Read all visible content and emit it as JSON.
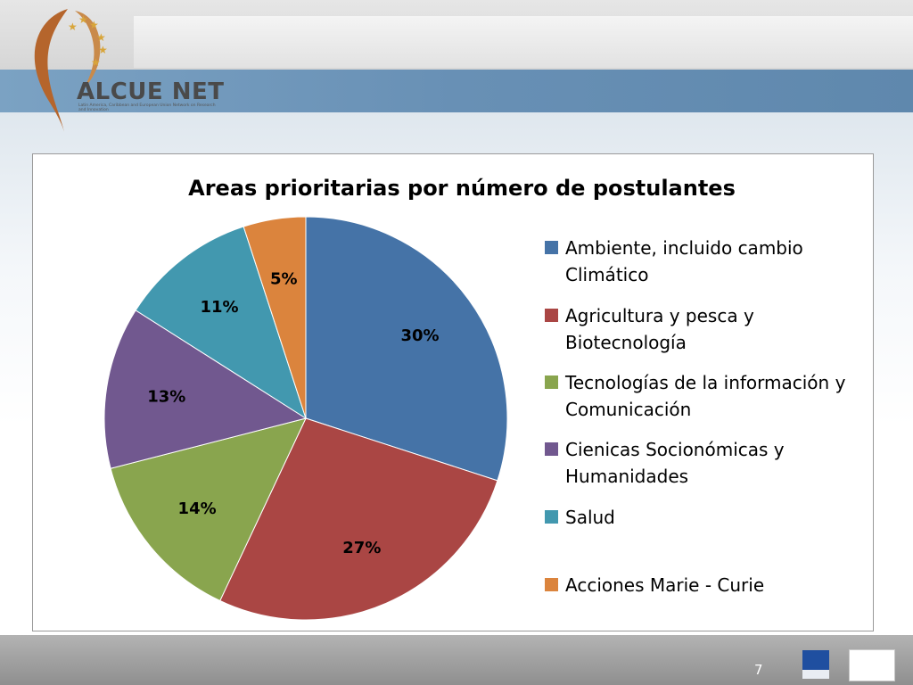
{
  "logo": {
    "name": "ALCUE NET",
    "subtitle": "Latin America, Caribbean and European Union Network on Research and Innovation"
  },
  "footer": {
    "page_number": "7"
  },
  "colors": {
    "series": [
      "#4573a7",
      "#aa4644",
      "#89a54e",
      "#71588f",
      "#4298af",
      "#db843d"
    ]
  },
  "chart_data": {
    "type": "pie",
    "title": "Areas prioritarias por número de postulantes",
    "legend_position": "right",
    "slices": [
      {
        "label": "Ambiente, incluido cambio Climático",
        "lines": [
          "Ambiente, incluido cambio",
          "Climático"
        ],
        "value": 30,
        "data_label": "30%"
      },
      {
        "label": "Agricultura y pesca y Biotecnología",
        "lines": [
          "Agricultura y pesca y",
          "Biotecnología"
        ],
        "value": 27,
        "data_label": "27%"
      },
      {
        "label": "Tecnologías de la información y Comunicación",
        "lines": [
          "Tecnologías de la información y",
          "Comunicación"
        ],
        "value": 14,
        "data_label": "14%"
      },
      {
        "label": "Cienicas Socionómicas y Humanidades",
        "lines": [
          "Cienicas Socionómicas y",
          "Humanidades"
        ],
        "value": 13,
        "data_label": "13%"
      },
      {
        "label": "Salud",
        "lines": [
          "Salud"
        ],
        "value": 11,
        "data_label": "11%"
      },
      {
        "label": "Acciones Marie - Curie",
        "lines": [
          "Acciones Marie - Curie"
        ],
        "value": 5,
        "data_label": "5%"
      }
    ]
  }
}
